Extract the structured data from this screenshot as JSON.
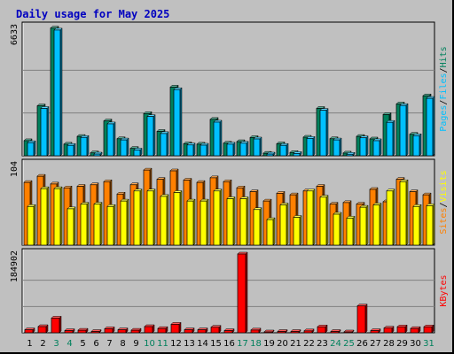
{
  "title": "Daily usage for May 2025",
  "colors": {
    "background": "#c0c0c0",
    "plot_bg": "#c0c0c0",
    "grid": "#808080",
    "title": "#0000c0",
    "hits": "#00805c",
    "files": "#00c0ff",
    "pages": "#00c0ff",
    "sites": "#ff8000",
    "visits": "#ffff00",
    "kbytes": "#ff0000",
    "weekday_label": "#000000",
    "weekend_label": "#00805c",
    "separator": "#000000"
  },
  "chart_data": [
    {
      "type": "bar",
      "panel": "hits-files-pages",
      "ymax_label": "6633",
      "ylim": [
        0,
        6633
      ],
      "grid_values": [
        2211,
        4422
      ],
      "legend": [
        "Pages",
        "/",
        "Files",
        "/",
        "Hits"
      ],
      "categories": [
        "1",
        "2",
        "3",
        "4",
        "5",
        "6",
        "7",
        "8",
        "9",
        "10",
        "11",
        "12",
        "13",
        "14",
        "15",
        "16",
        "17",
        "18",
        "19",
        "20",
        "21",
        "22",
        "23",
        "24",
        "25",
        "26",
        "27",
        "28",
        "29",
        "30",
        "31"
      ],
      "weekend": [
        3,
        4,
        10,
        11,
        17,
        18,
        24,
        25,
        31
      ],
      "series": [
        {
          "name": "Hits",
          "values": [
            780,
            2580,
            6600,
            600,
            1000,
            150,
            1800,
            880,
            380,
            2180,
            1260,
            3550,
            620,
            600,
            1880,
            650,
            730,
            940,
            130,
            620,
            170,
            960,
            2450,
            880,
            140,
            1000,
            870,
            2130,
            2680,
            1110,
            3100
          ]
        },
        {
          "name": "Files",
          "values": [
            680,
            2450,
            6500,
            540,
            950,
            90,
            1650,
            820,
            300,
            2030,
            1150,
            3420,
            560,
            550,
            1740,
            600,
            650,
            870,
            90,
            540,
            120,
            900,
            2350,
            820,
            80,
            930,
            780,
            1730,
            2600,
            1040,
            2970
          ]
        }
      ]
    },
    {
      "type": "bar",
      "panel": "sites-visits",
      "ymax_label": "104",
      "ylim": [
        0,
        104
      ],
      "grid_values": [],
      "legend": [
        "Sites",
        "/",
        "Visits"
      ],
      "series": [
        {
          "name": "Visits",
          "values": [
            50,
            73,
            73,
            47,
            53,
            53,
            50,
            57,
            70,
            70,
            63,
            68,
            57,
            57,
            70,
            60,
            60,
            46,
            33,
            52,
            36,
            70,
            62,
            40,
            35,
            49,
            52,
            70,
            82,
            50,
            51
          ]
        },
        {
          "name": "Sites",
          "values": [
            81,
            89,
            79,
            74,
            76,
            78,
            82,
            66,
            78,
            97,
            85,
            96,
            84,
            81,
            87,
            82,
            74,
            69,
            57,
            67,
            65,
            70,
            76,
            53,
            55,
            53,
            72,
            56,
            85,
            69,
            65
          ]
        }
      ]
    },
    {
      "type": "bar",
      "panel": "kbytes",
      "ymax_label": "184902",
      "ylim": [
        0,
        184902
      ],
      "grid_values": [
        123268,
        61634
      ],
      "legend": [
        "KBytes"
      ],
      "series": [
        {
          "name": "KBytes",
          "values": [
            7000,
            14500,
            34500,
            5000,
            6000,
            3000,
            9500,
            7000,
            6000,
            14500,
            10000,
            20000,
            7000,
            7000,
            13000,
            5000,
            184902,
            6500,
            1000,
            3000,
            3000,
            4500,
            14000,
            3000,
            1000,
            63000,
            5000,
            11000,
            14000,
            10000,
            14000
          ]
        }
      ]
    }
  ]
}
